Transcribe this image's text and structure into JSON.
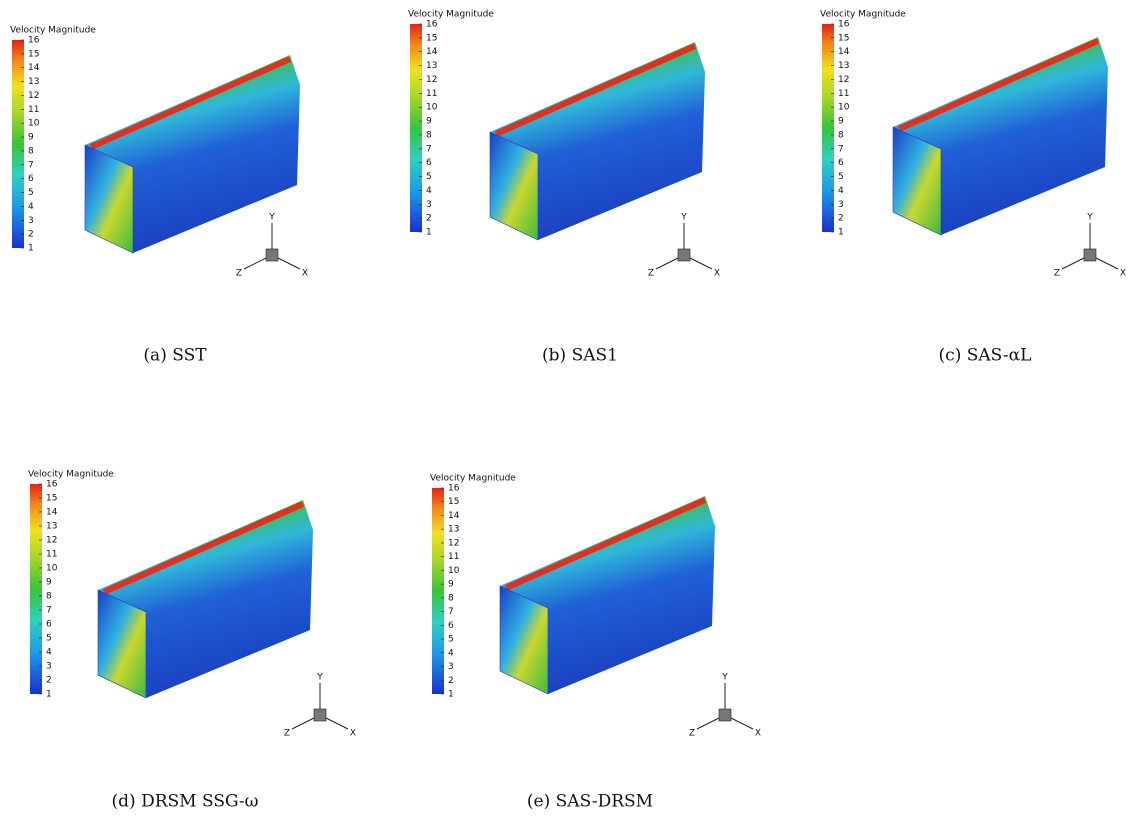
{
  "panels": [
    {
      "colorbar": {
        "title": "Velocity Magnitude",
        "ticks": [
          16,
          15,
          14,
          13,
          12,
          11,
          10,
          9,
          8,
          7,
          6,
          5,
          4,
          3,
          2,
          1
        ]
      },
      "triad": {
        "y": "Y",
        "z": "Z",
        "x": "X"
      },
      "caption": "(a) SST"
    },
    {
      "colorbar": {
        "title": "Velocity Magnitude",
        "ticks": [
          16,
          15,
          14,
          13,
          12,
          11,
          10,
          9,
          8,
          7,
          6,
          5,
          4,
          3,
          2,
          1
        ]
      },
      "triad": {
        "y": "Y",
        "z": "Z",
        "x": "X"
      },
      "caption": "(b) SAS1"
    },
    {
      "colorbar": {
        "title": "Velocity Magnitude",
        "ticks": [
          16,
          15,
          14,
          13,
          12,
          11,
          10,
          9,
          8,
          7,
          6,
          5,
          4,
          3,
          2,
          1
        ]
      },
      "triad": {
        "y": "Y",
        "z": "Z",
        "x": "X"
      },
      "caption": "(c) SAS-αL"
    },
    {
      "colorbar": {
        "title": "Velocity Magnitude",
        "ticks": [
          16,
          15,
          14,
          13,
          12,
          11,
          10,
          9,
          8,
          7,
          6,
          5,
          4,
          3,
          2,
          1
        ]
      },
      "triad": {
        "y": "Y",
        "z": "Z",
        "x": "X"
      },
      "caption": "(d) DRSM SSG-ω"
    },
    {
      "colorbar": {
        "title": "Velocity Magnitude",
        "ticks": [
          16,
          15,
          14,
          13,
          12,
          11,
          10,
          9,
          8,
          7,
          6,
          5,
          4,
          3,
          2,
          1
        ]
      },
      "triad": {
        "y": "Y",
        "z": "Z",
        "x": "X"
      },
      "caption": "(e) SAS-DRSM"
    }
  ]
}
